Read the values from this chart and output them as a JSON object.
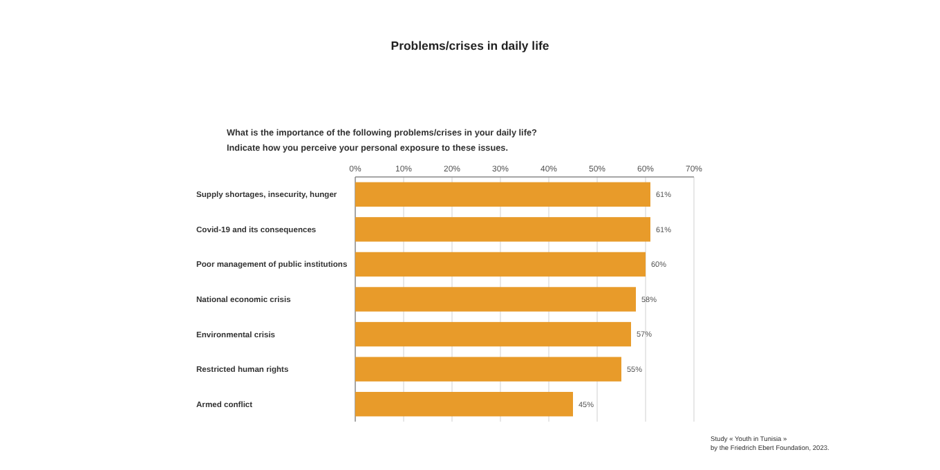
{
  "chart_data": {
    "type": "bar",
    "orientation": "horizontal",
    "title": "Problems/crises in daily life",
    "subtitle": "What is the importance of the following problems/crises in your daily life?\nIndicate how you perceive your personal exposure to these issues.",
    "categories": [
      "Supply shortages, insecurity, hunger",
      "Covid-19 and its consequences",
      "Poor management of public institutions",
      "National economic crisis",
      "Environmental crisis",
      "Restricted human rights",
      "Armed conflict"
    ],
    "values": [
      61,
      61,
      60,
      58,
      57,
      55,
      45
    ],
    "value_labels": [
      "61%",
      "61%",
      "60%",
      "58%",
      "57%",
      "55%",
      "45%"
    ],
    "color": "#e89b2a",
    "xlim": [
      0,
      70
    ],
    "xticks": [
      {
        "value": 0,
        "label": "0%"
      },
      {
        "value": 10,
        "label": "10%"
      },
      {
        "value": 20,
        "label": "20%"
      },
      {
        "value": 30,
        "label": "30%"
      },
      {
        "value": 40,
        "label": "40%"
      },
      {
        "value": 50,
        "label": "50%"
      },
      {
        "value": 60,
        "label": "60%"
      },
      {
        "value": 70,
        "label": "70%"
      }
    ],
    "grid": "x",
    "annotations": [
      "Study « Youth in Tunisia »\nby the Friedrich Ebert Foundation, 2023."
    ]
  }
}
